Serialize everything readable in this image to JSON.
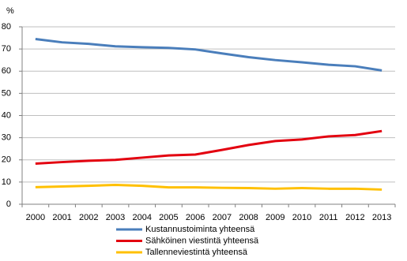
{
  "chart_data": {
    "type": "line",
    "y_label": "%",
    "categories": [
      "2000",
      "2001",
      "2002",
      "2003",
      "2004",
      "2005",
      "2006",
      "2007",
      "2008",
      "2009",
      "2010",
      "2011",
      "2012",
      "2013"
    ],
    "series": [
      {
        "name": "Kustannustoiminta yhteensä",
        "color": "#4a7ebb",
        "values": [
          74.5,
          73,
          72.3,
          71.2,
          70.8,
          70.5,
          69.8,
          68,
          66.3,
          65,
          64,
          62.9,
          62.2,
          60.3
        ]
      },
      {
        "name": "Sähköinen viestintä yhteensä",
        "color": "#e3000f",
        "values": [
          18.3,
          19,
          19.6,
          20,
          21,
          22,
          22.4,
          24.5,
          26.7,
          28.5,
          29.2,
          30.6,
          31.2,
          33
        ]
      },
      {
        "name": "Tallenneviestintä yhteensä",
        "color": "#ffc000",
        "values": [
          7.7,
          8,
          8.3,
          8.7,
          8.3,
          7.6,
          7.6,
          7.4,
          7.3,
          7,
          7.3,
          7,
          7,
          6.6
        ]
      }
    ],
    "ylim": [
      0,
      80
    ],
    "yticks": [
      0,
      10,
      20,
      30,
      40,
      50,
      60,
      70,
      80
    ],
    "grid": true,
    "legend": "bottom"
  }
}
